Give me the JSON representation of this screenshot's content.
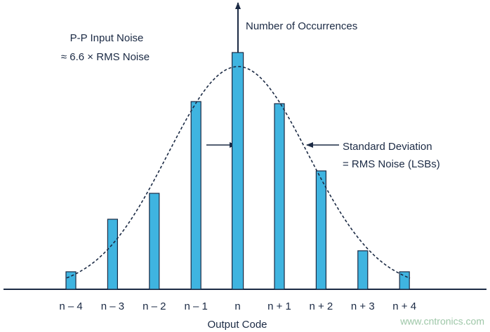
{
  "chart_data": {
    "type": "bar",
    "y_label": "Number of Occurrences",
    "x_label": "Output Code",
    "annotations": [
      "P-P Input Noise",
      "≈ 6.6 × RMS Noise",
      "Standard Deviation",
      "= RMS Noise (LSBs)"
    ],
    "watermark": "www.cntronics.com",
    "categories": [
      "n – 4",
      "n – 3",
      "n – 2",
      "n – 1",
      "n",
      "n + 1",
      "n + 2",
      "n + 3",
      "n + 4"
    ],
    "values": [
      25,
      100,
      137,
      268,
      338,
      265,
      169,
      55,
      25
    ],
    "color": "#3fb4e0",
    "ylim": [
      0,
      408
    ]
  }
}
